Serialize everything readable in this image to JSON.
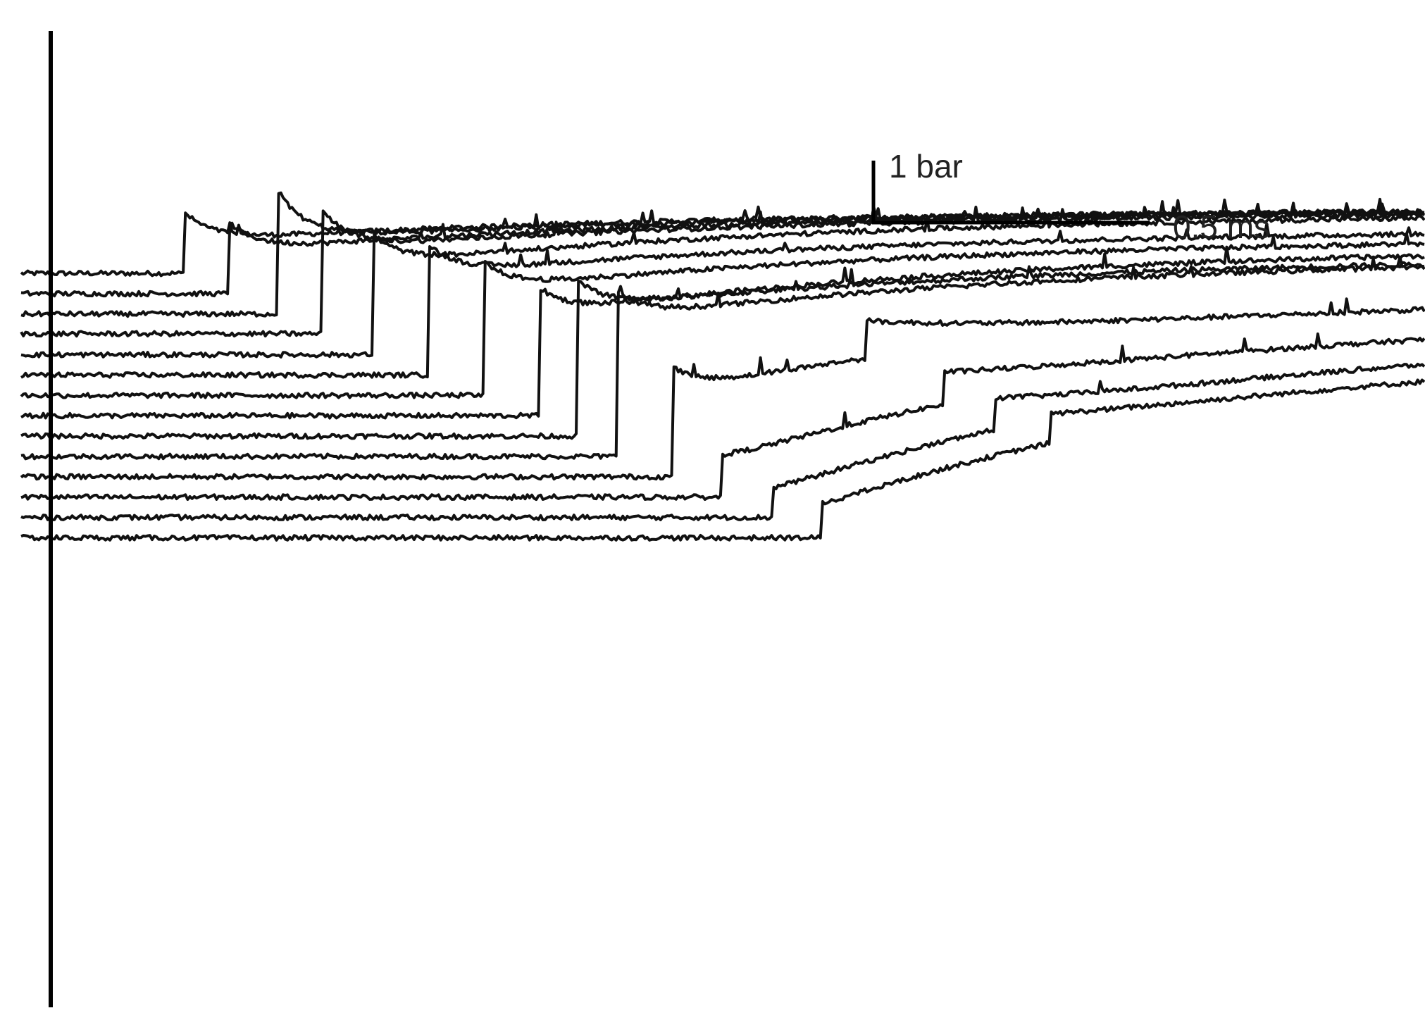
{
  "chart_data": {
    "type": "line",
    "title": "",
    "xlabel": "",
    "ylabel": "",
    "grid": false,
    "legend": "none",
    "scale_bar": {
      "pressure_label": "1 bar",
      "time_label": "0.5 ms",
      "pressure_value_bar": 1,
      "time_value_ms": 0.5
    },
    "colors": {
      "trace": "#111111",
      "background": "#ffffff"
    },
    "xlim": [
      0,
      2.4
    ],
    "series": [
      {
        "baseline_bar": 0.0,
        "onset_ms": 0.24,
        "jump_bar": 0.6,
        "peak_extra_bar": 0.55,
        "final_bar": 1.2,
        "late_jump_ms": null,
        "late_jump_bar": 0
      },
      {
        "baseline_bar": -0.38,
        "onset_ms": 0.32,
        "jump_bar": 0.8,
        "peak_extra_bar": 0.55,
        "final_bar": 1.2,
        "late_jump_ms": null,
        "late_jump_bar": 0
      },
      {
        "baseline_bar": -0.76,
        "onset_ms": 0.41,
        "jump_bar": 1.4,
        "peak_extra_bar": 0.9,
        "final_bar": 1.2,
        "late_jump_ms": null,
        "late_jump_bar": 0
      },
      {
        "baseline_bar": -1.13,
        "onset_ms": 0.49,
        "jump_bar": 1.6,
        "peak_extra_bar": 0.7,
        "final_bar": 1.17,
        "late_jump_ms": null,
        "late_jump_bar": 0
      },
      {
        "baseline_bar": -1.52,
        "onset_ms": 0.58,
        "jump_bar": 1.7,
        "peak_extra_bar": 0.55,
        "final_bar": 1.15,
        "late_jump_ms": null,
        "late_jump_bar": 0
      },
      {
        "baseline_bar": -1.9,
        "onset_ms": 0.68,
        "jump_bar": 1.9,
        "peak_extra_bar": 0.55,
        "final_bar": 0.85,
        "late_jump_ms": null,
        "late_jump_bar": 0
      },
      {
        "baseline_bar": -2.28,
        "onset_ms": 0.78,
        "jump_bar": 2.0,
        "peak_extra_bar": 0.5,
        "final_bar": 0.7,
        "late_jump_ms": null,
        "late_jump_bar": 0
      },
      {
        "baseline_bar": -2.66,
        "onset_ms": 0.88,
        "jump_bar": 1.9,
        "peak_extra_bar": 0.5,
        "final_bar": 0.55,
        "late_jump_ms": null,
        "late_jump_bar": 0
      },
      {
        "baseline_bar": -3.04,
        "onset_ms": 0.95,
        "jump_bar": 2.4,
        "peak_extra_bar": 0.5,
        "final_bar": 0.35,
        "late_jump_ms": null,
        "late_jump_bar": 0
      },
      {
        "baseline_bar": -3.42,
        "onset_ms": 1.02,
        "jump_bar": 2.6,
        "peak_extra_bar": 0.5,
        "final_bar": 0.35,
        "late_jump_ms": null,
        "late_jump_bar": 0
      },
      {
        "baseline_bar": -3.8,
        "onset_ms": 1.12,
        "jump_bar": 1.6,
        "peak_extra_bar": 0.45,
        "final_bar": -0.3,
        "late_jump_ms": 1.47,
        "late_jump_bar": 0.7
      },
      {
        "baseline_bar": -4.18,
        "onset_ms": 1.21,
        "jump_bar": 0.7,
        "peak_extra_bar": 0.1,
        "final_bar": -0.6,
        "late_jump_ms": 1.61,
        "late_jump_bar": 0.6
      },
      {
        "baseline_bar": -4.56,
        "onset_ms": 1.3,
        "jump_bar": 0.5,
        "peak_extra_bar": 0.05,
        "final_bar": -0.9,
        "late_jump_ms": 1.7,
        "late_jump_bar": 0.6
      },
      {
        "baseline_bar": -4.94,
        "onset_ms": 1.39,
        "jump_bar": 0.6,
        "peak_extra_bar": 0.05,
        "final_bar": -1.15,
        "late_jump_ms": 1.8,
        "late_jump_bar": 0.55
      }
    ]
  }
}
